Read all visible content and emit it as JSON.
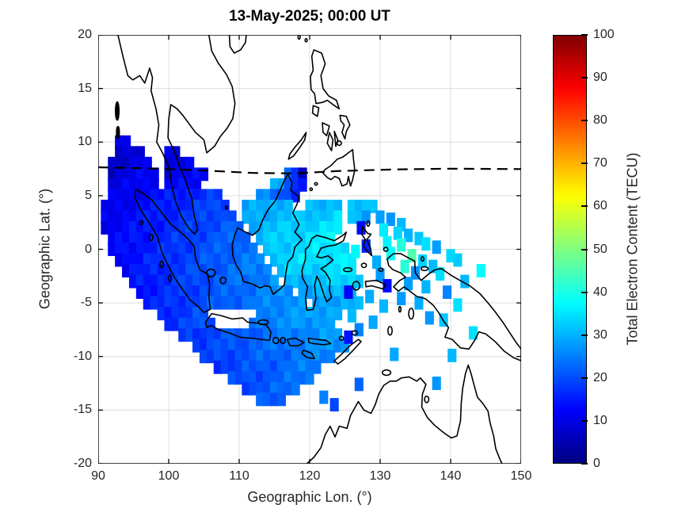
{
  "title": "13-May-2025; 00:00 UT",
  "chart_data": {
    "type": "heatmap",
    "title": "13-May-2025; 00:00 UT",
    "xlabel": "Geographic Lon. (°)",
    "ylabel": "Geographic Lat. (°)",
    "xlim": [
      90,
      150
    ],
    "ylim": [
      -20,
      20
    ],
    "xticks": [
      90,
      100,
      110,
      120,
      130,
      140,
      150
    ],
    "yticks": [
      -20,
      -15,
      -10,
      -5,
      0,
      5,
      10,
      15,
      20
    ],
    "grid": true,
    "grid_color": "#dcdcdc",
    "colorbar": {
      "label": "Total Electron Content (TECU)",
      "min": 0,
      "max": 100,
      "ticks": [
        0,
        10,
        20,
        30,
        40,
        50,
        60,
        70,
        80,
        90,
        100
      ],
      "colormap": "jet"
    },
    "magnetic_equator_dashed_line": [
      [
        90,
        7.65
      ],
      [
        97,
        7.55
      ],
      [
        105,
        7.35
      ],
      [
        112,
        7.12
      ],
      [
        118,
        7.08
      ],
      [
        124,
        7.3
      ],
      [
        132,
        7.45
      ],
      [
        140,
        7.52
      ],
      [
        150,
        7.48
      ]
    ],
    "cell_size_deg": [
      1.25,
      1.25
    ],
    "tec_runs": [
      [
        10,
        93,
        94,
        8,
        9
      ],
      [
        9,
        93,
        96,
        8,
        10
      ],
      [
        9,
        100,
        101,
        10,
        10
      ],
      [
        8,
        92,
        97,
        7,
        11
      ],
      [
        8,
        100,
        103,
        9,
        11
      ],
      [
        7,
        92,
        98,
        8,
        12
      ],
      [
        7,
        100,
        105,
        9,
        13
      ],
      [
        7,
        117,
        119,
        22,
        8
      ],
      [
        6,
        92,
        98,
        9,
        13
      ],
      [
        6,
        100,
        104,
        11,
        14
      ],
      [
        6,
        115,
        119,
        30,
        14
      ],
      [
        5,
        92,
        107,
        10,
        18
      ],
      [
        5,
        113,
        118,
        26,
        18
      ],
      [
        4,
        91,
        108,
        10,
        20
      ],
      [
        4,
        111,
        117,
        28,
        31
      ],
      [
        4,
        120,
        124,
        30,
        32
      ],
      [
        4,
        126,
        129,
        30,
        32
      ],
      [
        3,
        91,
        109,
        11,
        21
      ],
      [
        3,
        111,
        124,
        29,
        33
      ],
      [
        3,
        126,
        128,
        31,
        30
      ],
      [
        2,
        91,
        110,
        11,
        22
      ],
      [
        2,
        112,
        124,
        30,
        35
      ],
      [
        1,
        92,
        111,
        12,
        23
      ],
      [
        1,
        113,
        123,
        31,
        36
      ],
      [
        0,
        92,
        112,
        12,
        24
      ],
      [
        0,
        114,
        125,
        32,
        36
      ],
      [
        -1,
        93,
        113,
        13,
        25
      ],
      [
        -1,
        115,
        126,
        33,
        36
      ],
      [
        -2,
        94,
        114,
        13,
        26
      ],
      [
        -2,
        116,
        126,
        32,
        35
      ],
      [
        -3,
        95,
        115,
        14,
        26
      ],
      [
        -3,
        117,
        127,
        30,
        34
      ],
      [
        -4,
        96,
        117,
        14,
        27
      ],
      [
        -4,
        119,
        126,
        28,
        32
      ],
      [
        -5,
        97,
        119,
        15,
        28
      ],
      [
        -5,
        121,
        127,
        28,
        30
      ],
      [
        -6,
        99,
        105,
        16,
        20
      ],
      [
        -6,
        113,
        124,
        25,
        30
      ],
      [
        -7,
        100,
        106,
        17,
        21
      ],
      [
        -7,
        112,
        123,
        24,
        29
      ],
      [
        -8,
        102,
        124,
        17,
        28
      ],
      [
        -9,
        104,
        125,
        18,
        28
      ],
      [
        -10,
        105,
        123,
        18,
        26
      ],
      [
        -11,
        107,
        121,
        18,
        25
      ],
      [
        -12,
        109,
        120,
        19,
        24
      ],
      [
        -13,
        111,
        118,
        20,
        23
      ],
      [
        -14,
        113,
        116,
        21,
        20
      ]
    ],
    "tec_cells_scattered": [
      [
        130,
        3,
        28
      ],
      [
        131.5,
        2.8,
        26
      ],
      [
        133,
        2.3,
        30
      ],
      [
        127.3,
        2,
        13
      ],
      [
        130.5,
        1.8,
        33
      ],
      [
        132.5,
        1.5,
        35
      ],
      [
        134,
        1.3,
        30
      ],
      [
        135.5,
        1,
        32
      ],
      [
        131,
        0.6,
        36
      ],
      [
        133,
        0.4,
        43
      ],
      [
        136.5,
        0.5,
        33
      ],
      [
        138,
        0.2,
        30
      ],
      [
        128,
        0.3,
        15
      ],
      [
        126.5,
        -0.2,
        34
      ],
      [
        131.5,
        -0.4,
        38
      ],
      [
        134.5,
        -0.6,
        44
      ],
      [
        140,
        -0.6,
        32
      ],
      [
        129.5,
        -1.2,
        30
      ],
      [
        136,
        -1.1,
        34
      ],
      [
        141,
        -1,
        30
      ],
      [
        133.5,
        -1.6,
        40
      ],
      [
        137.5,
        -1.6,
        32
      ],
      [
        144.3,
        -2,
        35
      ],
      [
        135,
        -2.2,
        30
      ],
      [
        138.5,
        -2.3,
        33
      ],
      [
        130,
        -2.4,
        28
      ],
      [
        142,
        -3,
        30
      ],
      [
        134,
        -3.2,
        28
      ],
      [
        131,
        -3.4,
        14
      ],
      [
        136.5,
        -3.5,
        30
      ],
      [
        139.5,
        -4,
        28
      ],
      [
        128.5,
        -4.4,
        30
      ],
      [
        133,
        -4.6,
        26
      ],
      [
        125.5,
        -4,
        15
      ],
      [
        135.5,
        -5,
        28
      ],
      [
        130.5,
        -5.3,
        30
      ],
      [
        141,
        -5.2,
        33
      ],
      [
        126,
        -6.2,
        28
      ],
      [
        129,
        -6.8,
        28
      ],
      [
        137,
        -6.4,
        26
      ],
      [
        139,
        -6.6,
        32
      ],
      [
        127,
        -7.5,
        25
      ],
      [
        143.2,
        -7.8,
        33
      ],
      [
        125.5,
        -8.2,
        15
      ],
      [
        132,
        -9.8,
        28
      ],
      [
        140.2,
        -9.9,
        28
      ],
      [
        127,
        -12.6,
        25
      ],
      [
        138,
        -12.5,
        28
      ],
      [
        122,
        -13.8,
        24
      ],
      [
        123.5,
        -14.5,
        22
      ]
    ]
  }
}
